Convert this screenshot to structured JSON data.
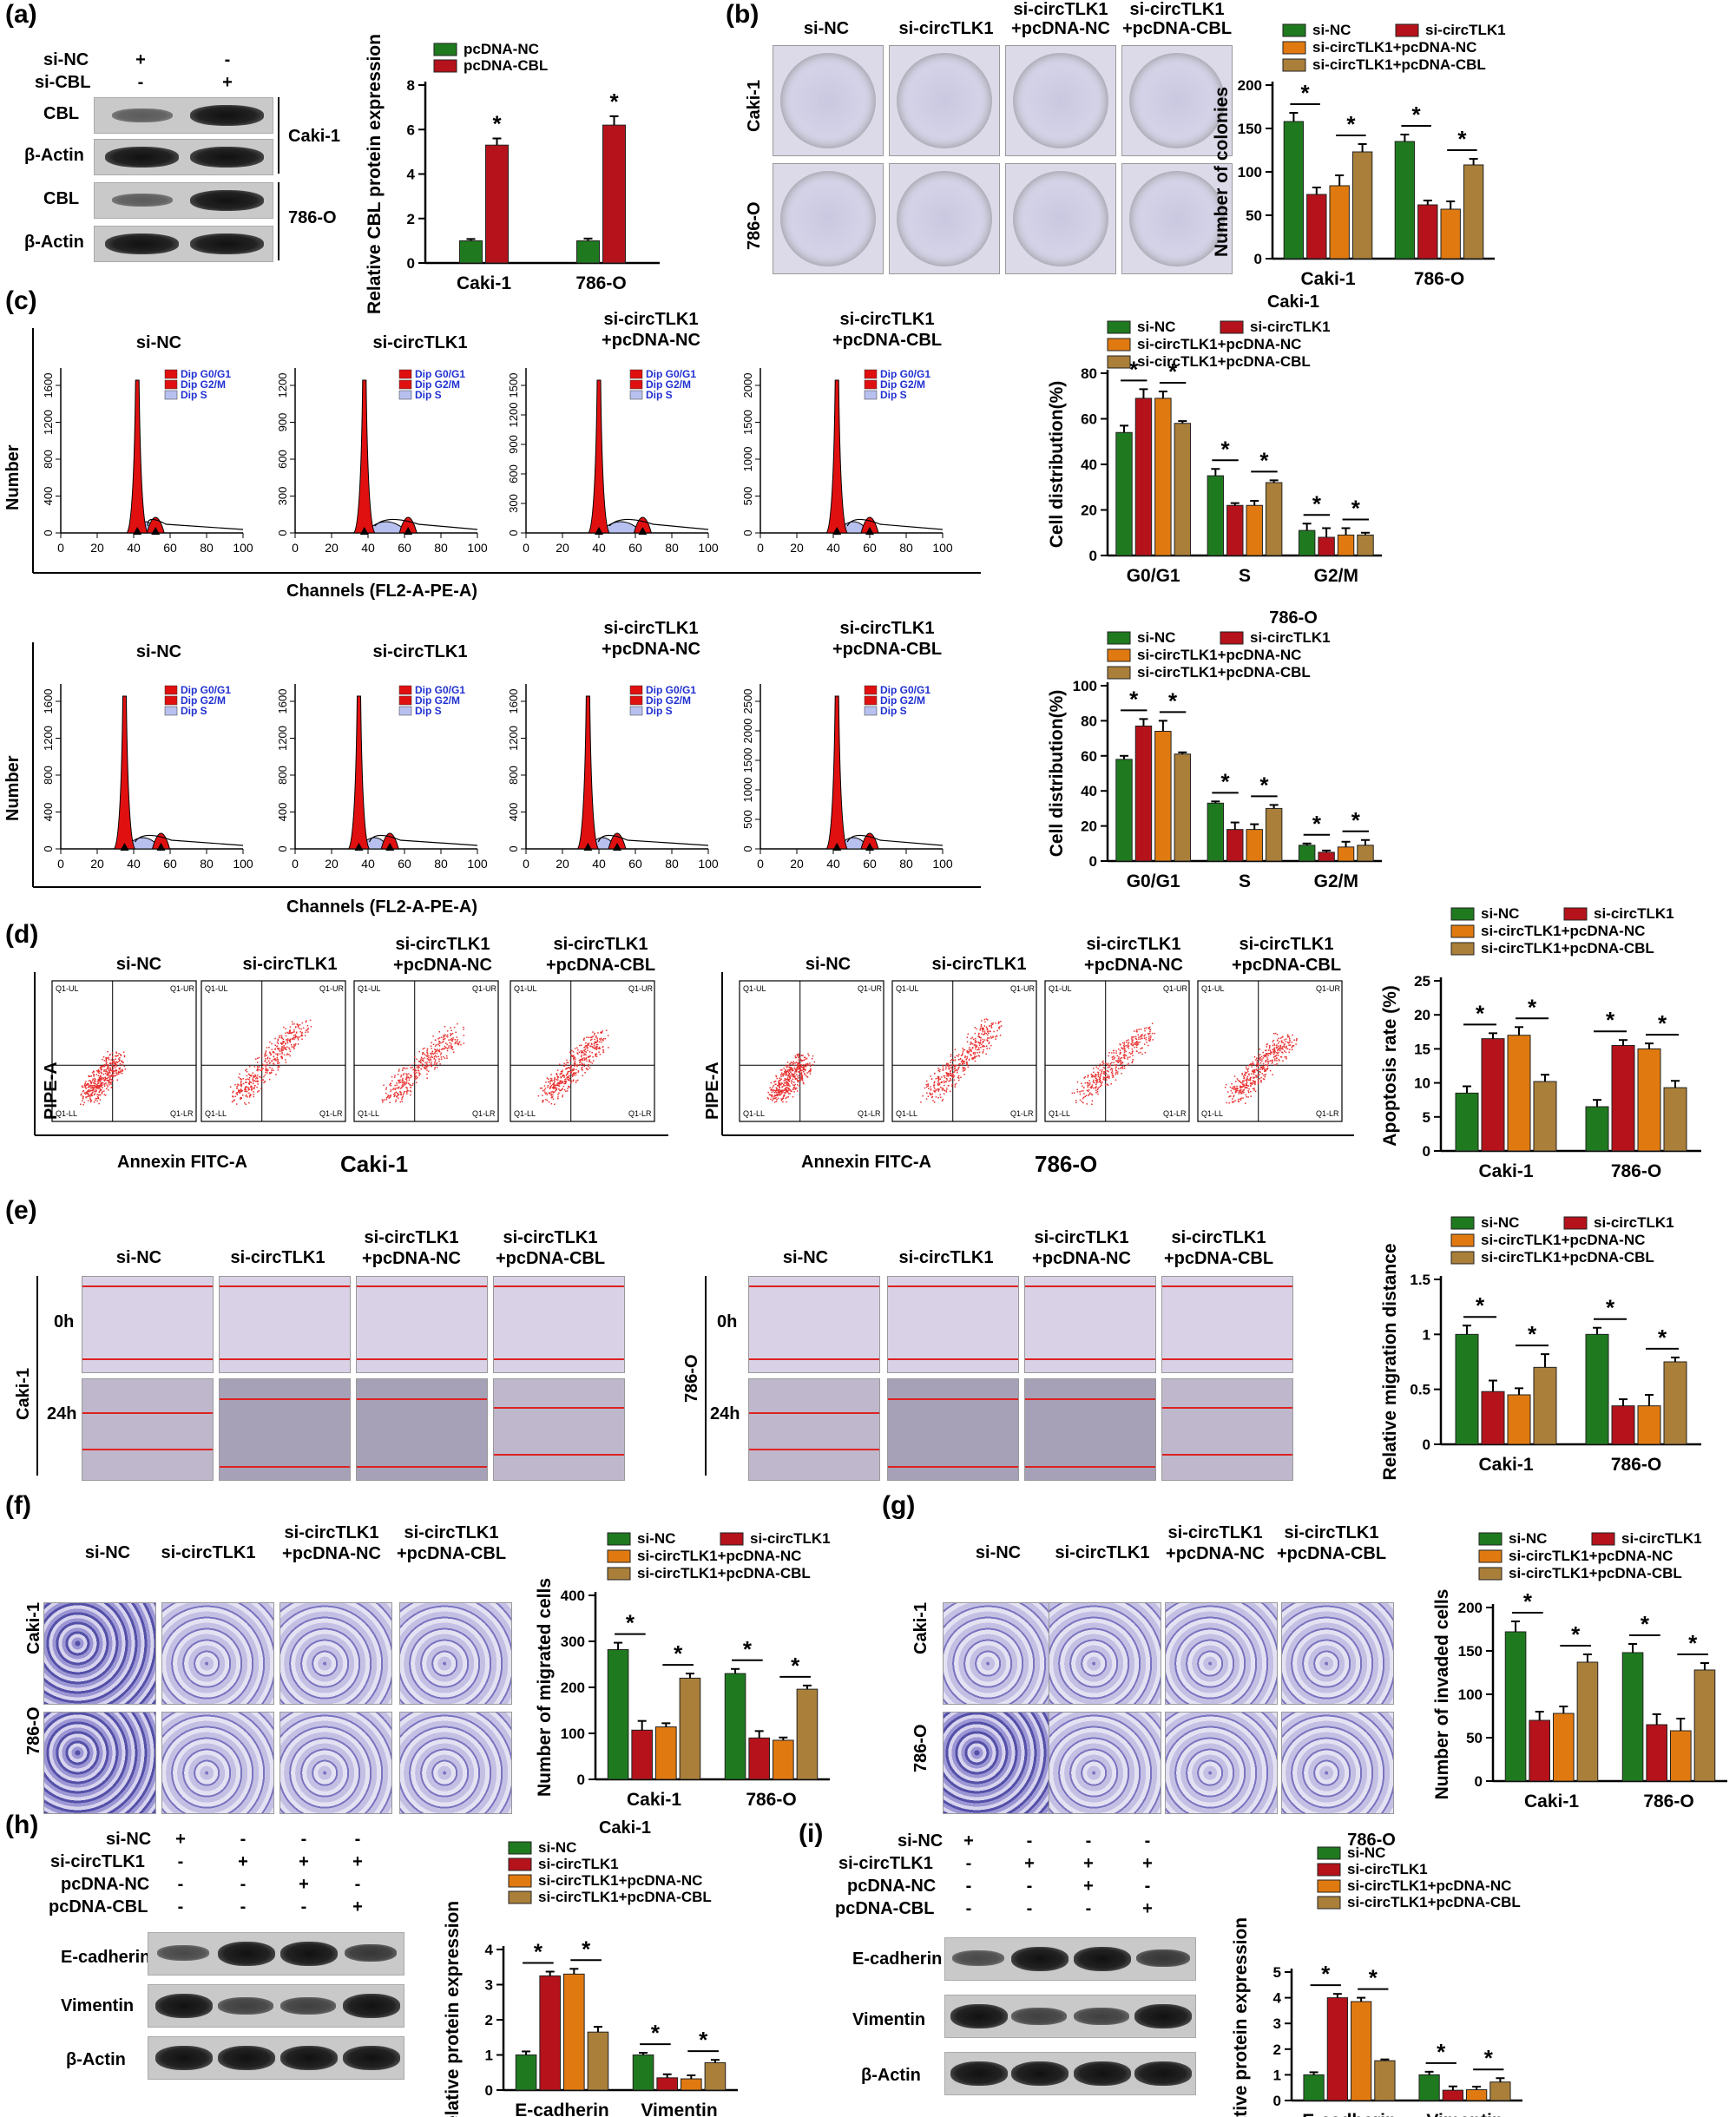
{
  "colors": {
    "green": "#1f7a1f",
    "red": "#b5121b",
    "orange": "#e07a10",
    "tan": "#a97f3a",
    "flow_red": "#e01010",
    "flow_blue": "#b8c0f0",
    "dot": "#e83030"
  },
  "panels": {
    "a": {
      "label": "(a)",
      "row1": "si-NC",
      "row2": "si-CBL",
      "row1_vals": [
        "+",
        "-"
      ],
      "row2_vals": [
        "-",
        "+"
      ],
      "bands": [
        "CBL",
        "β-Actin",
        "CBL",
        "β-Actin"
      ],
      "cell1": "Caki-1",
      "cell2": "786-O"
    },
    "b": {
      "label": "(b)",
      "cols": [
        "si-NC",
        "si-circTLK1",
        "si-circTLK1\n+pcDNA-NC",
        "si-circTLK1\n+pcDNA-CBL"
      ],
      "rows": [
        "Caki-1",
        "786-O"
      ]
    },
    "c": {
      "label": "(c)",
      "cols": [
        "si-NC",
        "si-circTLK1",
        "si-circTLK1\n+pcDNA-NC",
        "si-circTLK1\n+pcDNA-CBL"
      ],
      "ylabel": "Number",
      "xlabel": "Channels (FL2-A-PE-A)",
      "legend": [
        "Dip G0/G1",
        "Dip G2/M",
        "Dip S"
      ],
      "xticks": [
        "0",
        "20",
        "40",
        "60",
        "80",
        "100"
      ],
      "yticks_top": [
        [
          "0",
          "400",
          "800",
          "1200",
          "1600"
        ],
        [
          "0",
          "300",
          "600",
          "900",
          "1200"
        ],
        [
          "0",
          "300",
          "600",
          "900",
          "1200",
          "1500"
        ],
        [
          "0",
          "500",
          "1000",
          "1500",
          "2000"
        ]
      ],
      "yticks_bot": [
        [
          "0",
          "400",
          "800",
          "1200",
          "1600"
        ],
        [
          "0",
          "400",
          "800",
          "1200",
          "1600"
        ],
        [
          "0",
          "400",
          "800",
          "1200",
          "1600"
        ],
        [
          "0",
          "500",
          "1000",
          "1500",
          "2000",
          "2500"
        ]
      ]
    },
    "d": {
      "label": "(d)",
      "cols": [
        "si-NC",
        "si-circTLK1",
        "si-circTLK1\n+pcDNA-NC",
        "si-circTLK1\n+pcDNA-CBL"
      ],
      "ylabel": "PIPE-A",
      "xlabel": "Annexin FITC-A",
      "cell1": "Caki-1",
      "cell2": "786-O",
      "quads": [
        "Q1-UL",
        "Q1-UR",
        "Q1-LL",
        "Q1-LR"
      ]
    },
    "e": {
      "label": "(e)",
      "cols": [
        "si-NC",
        "si-circTLK1",
        "si-circTLK1\n+pcDNA-NC",
        "si-circTLK1\n+pcDNA-CBL"
      ],
      "times": [
        "0h",
        "24h"
      ],
      "cell1": "Caki-1",
      "cell2": "786-O"
    },
    "f": {
      "label": "(f)",
      "cols": [
        "si-NC",
        "si-circTLK1",
        "si-circTLK1\n+pcDNA-NC",
        "si-circTLK1\n+pcDNA-CBL"
      ],
      "rows": [
        "Caki-1",
        "786-O"
      ]
    },
    "g": {
      "label": "(g)",
      "cols": [
        "si-NC",
        "si-circTLK1",
        "si-circTLK1\n+pcDNA-NC",
        "si-circTLK1\n+pcDNA-CBL"
      ],
      "rows": [
        "Caki-1",
        "786-O"
      ]
    },
    "h": {
      "label": "(h)",
      "rows": [
        "si-NC",
        "si-circTLK1",
        "pcDNA-NC",
        "pcDNA-CBL"
      ],
      "vals": [
        [
          "+",
          "-",
          "-",
          "-"
        ],
        [
          "-",
          "+",
          "+",
          "+"
        ],
        [
          "-",
          "-",
          "+",
          "-"
        ],
        [
          "-",
          "-",
          "-",
          "+"
        ]
      ],
      "bands": [
        "E-cadherin",
        "Vimentin",
        "β-Actin"
      ]
    },
    "i": {
      "label": "(i)",
      "rows": [
        "si-NC",
        "si-circTLK1",
        "pcDNA-NC",
        "pcDNA-CBL"
      ],
      "vals": [
        [
          "+",
          "-",
          "-",
          "-"
        ],
        [
          "-",
          "+",
          "+",
          "+"
        ],
        [
          "-",
          "-",
          "+",
          "-"
        ],
        [
          "-",
          "-",
          "-",
          "+"
        ]
      ],
      "bands": [
        "E-cadherin",
        "Vimentin",
        "β-Actin"
      ]
    }
  },
  "chart_data": [
    {
      "id": "a",
      "type": "bar",
      "title": "",
      "ylabel": "Relative CBL protein expression",
      "categories": [
        "Caki-1",
        "786-O"
      ],
      "ylim": [
        0,
        8
      ],
      "yticks": [
        0,
        2,
        4,
        6,
        8
      ],
      "legend": "top",
      "series": [
        {
          "name": "pcDNA-NC",
          "values": [
            1.0,
            1.0
          ],
          "err": [
            0.08,
            0.1
          ]
        },
        {
          "name": "pcDNA-CBL",
          "values": [
            5.3,
            6.2
          ],
          "err": [
            0.3,
            0.4
          ]
        }
      ],
      "stars": "*"
    },
    {
      "id": "b",
      "type": "bar",
      "title": "",
      "ylabel": "Number of colonies",
      "categories": [
        "Caki-1",
        "786-O"
      ],
      "ylim": [
        0,
        200
      ],
      "yticks": [
        0,
        50,
        100,
        150,
        200
      ],
      "legend": "top",
      "series": [
        {
          "name": "si-NC",
          "values": [
            158,
            135
          ],
          "err": [
            10,
            8
          ]
        },
        {
          "name": "si-circTLK1",
          "values": [
            74,
            62
          ],
          "err": [
            8,
            5
          ]
        },
        {
          "name": "si-circTLK1+pcDNA-NC",
          "values": [
            84,
            57
          ],
          "err": [
            12,
            9
          ]
        },
        {
          "name": "si-circTLK1+pcDNA-CBL",
          "values": [
            123,
            108
          ],
          "err": [
            9,
            7
          ]
        }
      ],
      "stars": "*"
    },
    {
      "id": "c1",
      "type": "bar",
      "title": "Caki-1",
      "ylabel": "Cell distribution(%)",
      "categories": [
        "G0/G1",
        "S",
        "G2/M"
      ],
      "ylim": [
        0,
        80
      ],
      "yticks": [
        0,
        20,
        40,
        60,
        80
      ],
      "legend": "top",
      "series": [
        {
          "name": "si-NC",
          "values": [
            54,
            35,
            11
          ],
          "err": [
            3,
            3,
            3
          ]
        },
        {
          "name": "si-circTLK1",
          "values": [
            69,
            22,
            8
          ],
          "err": [
            4,
            1,
            4
          ]
        },
        {
          "name": "si-circTLK1+pcDNA-NC",
          "values": [
            69,
            22,
            9
          ],
          "err": [
            3,
            2,
            3
          ]
        },
        {
          "name": "si-circTLK1+pcDNA-CBL",
          "values": [
            58,
            32,
            9
          ],
          "err": [
            1,
            1,
            1
          ]
        }
      ],
      "stars": "*"
    },
    {
      "id": "c2",
      "type": "bar",
      "title": "786-O",
      "ylabel": "Cell distribution(%)",
      "categories": [
        "G0/G1",
        "S",
        "G2/M"
      ],
      "ylim": [
        0,
        100
      ],
      "yticks": [
        0,
        20,
        40,
        60,
        80,
        100
      ],
      "legend": "top",
      "series": [
        {
          "name": "si-NC",
          "values": [
            58,
            33,
            9
          ],
          "err": [
            2,
            1,
            1
          ]
        },
        {
          "name": "si-circTLK1",
          "values": [
            77,
            18,
            5
          ],
          "err": [
            4,
            4,
            1
          ]
        },
        {
          "name": "si-circTLK1+pcDNA-NC",
          "values": [
            74,
            18,
            8
          ],
          "err": [
            6,
            3,
            3
          ]
        },
        {
          "name": "si-circTLK1+pcDNA-CBL",
          "values": [
            61,
            30,
            9
          ],
          "err": [
            1,
            2,
            3
          ]
        }
      ],
      "stars": "*"
    },
    {
      "id": "d",
      "type": "bar",
      "title": "",
      "ylabel": "Apoptosis rate (%)",
      "categories": [
        "Caki-1",
        "786-O"
      ],
      "ylim": [
        0,
        25
      ],
      "yticks": [
        0,
        5,
        10,
        15,
        20,
        25
      ],
      "legend": "top",
      "series": [
        {
          "name": "si-NC",
          "values": [
            8.5,
            6.5
          ],
          "err": [
            1,
            1
          ]
        },
        {
          "name": "si-circTLK1",
          "values": [
            16.5,
            15.5
          ],
          "err": [
            0.8,
            0.8
          ]
        },
        {
          "name": "si-circTLK1+pcDNA-NC",
          "values": [
            17,
            15
          ],
          "err": [
            1.2,
            0.8
          ]
        },
        {
          "name": "si-circTLK1+pcDNA-CBL",
          "values": [
            10.2,
            9.3
          ],
          "err": [
            1,
            1
          ]
        }
      ],
      "stars": "*"
    },
    {
      "id": "e",
      "type": "bar",
      "title": "",
      "ylabel": "Relative migration distance",
      "categories": [
        "Caki-1",
        "786-O"
      ],
      "ylim": [
        0,
        1.5
      ],
      "yticks": [
        0.0,
        0.5,
        1.0,
        1.5
      ],
      "legend": "top",
      "series": [
        {
          "name": "si-NC",
          "values": [
            1.0,
            1.0
          ],
          "err": [
            0.08,
            0.06
          ]
        },
        {
          "name": "si-circTLK1",
          "values": [
            0.48,
            0.35
          ],
          "err": [
            0.1,
            0.06
          ]
        },
        {
          "name": "si-circTLK1+pcDNA-NC",
          "values": [
            0.45,
            0.35
          ],
          "err": [
            0.06,
            0.1
          ]
        },
        {
          "name": "si-circTLK1+pcDNA-CBL",
          "values": [
            0.7,
            0.75
          ],
          "err": [
            0.12,
            0.04
          ]
        }
      ],
      "stars": "*"
    },
    {
      "id": "f",
      "type": "bar",
      "title": "",
      "ylabel": "Number of migrated cells",
      "categories": [
        "Caki-1",
        "786-O"
      ],
      "ylim": [
        0,
        400
      ],
      "yticks": [
        0,
        100,
        200,
        300,
        400
      ],
      "legend": "top",
      "series": [
        {
          "name": "si-NC",
          "values": [
            282,
            230
          ],
          "err": [
            15,
            10
          ]
        },
        {
          "name": "si-circTLK1",
          "values": [
            107,
            90
          ],
          "err": [
            20,
            15
          ]
        },
        {
          "name": "si-circTLK1+pcDNA-NC",
          "values": [
            114,
            85
          ],
          "err": [
            8,
            6
          ]
        },
        {
          "name": "si-circTLK1+pcDNA-CBL",
          "values": [
            220,
            196
          ],
          "err": [
            10,
            8
          ]
        }
      ],
      "stars": "*"
    },
    {
      "id": "g",
      "type": "bar",
      "title": "",
      "ylabel": "Number of invaded cells",
      "categories": [
        "Caki-1",
        "786-O"
      ],
      "ylim": [
        0,
        200
      ],
      "yticks": [
        0,
        50,
        100,
        150,
        200
      ],
      "legend": "top",
      "series": [
        {
          "name": "si-NC",
          "values": [
            172,
            148
          ],
          "err": [
            12,
            10
          ]
        },
        {
          "name": "si-circTLK1",
          "values": [
            70,
            65
          ],
          "err": [
            10,
            12
          ]
        },
        {
          "name": "si-circTLK1+pcDNA-NC",
          "values": [
            78,
            58
          ],
          "err": [
            8,
            14
          ]
        },
        {
          "name": "si-circTLK1+pcDNA-CBL",
          "values": [
            137,
            128
          ],
          "err": [
            9,
            8
          ]
        }
      ],
      "stars": "*"
    },
    {
      "id": "h",
      "type": "bar",
      "title": "Caki-1",
      "ylabel": "Relative protein expression",
      "categories": [
        "E-cadherin",
        "Vimentin"
      ],
      "ylim": [
        0,
        4
      ],
      "yticks": [
        0,
        1,
        2,
        3,
        4
      ],
      "legend": "top",
      "series": [
        {
          "name": "si-NC",
          "values": [
            1.0,
            1.0
          ],
          "err": [
            0.1,
            0.06
          ]
        },
        {
          "name": "si-circTLK1",
          "values": [
            3.25,
            0.35
          ],
          "err": [
            0.12,
            0.1
          ]
        },
        {
          "name": "si-circTLK1+pcDNA-NC",
          "values": [
            3.3,
            0.32
          ],
          "err": [
            0.15,
            0.1
          ]
        },
        {
          "name": "si-circTLK1+pcDNA-CBL",
          "values": [
            1.65,
            0.78
          ],
          "err": [
            0.15,
            0.08
          ]
        }
      ],
      "stars": "*"
    },
    {
      "id": "i",
      "type": "bar",
      "title": "786-O",
      "ylabel": "Relative protein expression",
      "categories": [
        "E-cadherin",
        "Vimentin"
      ],
      "ylim": [
        0,
        5
      ],
      "yticks": [
        0,
        1,
        2,
        3,
        4,
        5
      ],
      "legend": "top",
      "series": [
        {
          "name": "si-NC",
          "values": [
            1.0,
            1.0
          ],
          "err": [
            0.1,
            0.12
          ]
        },
        {
          "name": "si-circTLK1",
          "values": [
            4.0,
            0.4
          ],
          "err": [
            0.15,
            0.15
          ]
        },
        {
          "name": "si-circTLK1+pcDNA-NC",
          "values": [
            3.85,
            0.42
          ],
          "err": [
            0.15,
            0.12
          ]
        },
        {
          "name": "si-circTLK1+pcDNA-CBL",
          "values": [
            1.55,
            0.72
          ],
          "err": [
            0.05,
            0.15
          ]
        }
      ],
      "stars": "*"
    }
  ]
}
